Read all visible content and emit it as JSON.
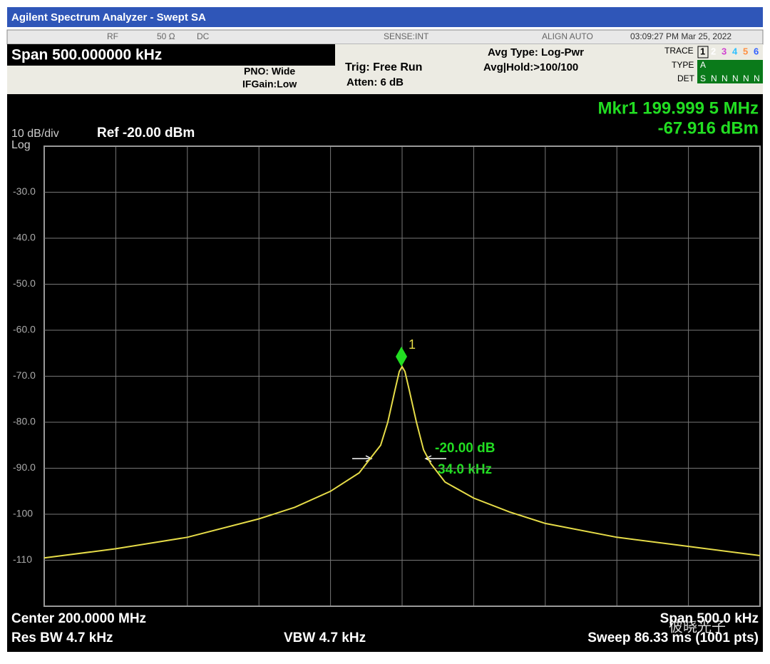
{
  "window_title": "Agilent Spectrum Analyzer - Swept SA",
  "status": {
    "rf": "RF",
    "impedance": "50 Ω",
    "coupling": "DC",
    "sense": "SENSE:INT",
    "align": "ALIGN AUTO",
    "datetime": "03:09:27 PM Mar 25, 2022"
  },
  "settings": {
    "span": "Span 500.000000 kHz",
    "pno": "PNO: Wide",
    "ifgain": "IFGain:Low",
    "trig": "Trig: Free Run",
    "atten": "Atten: 6 dB",
    "avg_type": "Avg Type: Log-Pwr",
    "avg_hold": "Avg|Hold:>100/100",
    "trace_label": "TRACE",
    "traces": [
      "1",
      "2",
      "3",
      "4",
      "5",
      "6"
    ],
    "type_label": "TYPE",
    "type": "A",
    "det_label": "DET",
    "det": [
      "S",
      "N",
      "N",
      "N",
      "N",
      "N"
    ]
  },
  "chart_data": {
    "type": "line",
    "scale_label": "10 dB/div",
    "log_label": "Log",
    "ref_label": "Ref -20.00 dBm",
    "xlim": [
      199.75,
      200.25
    ],
    "ylim": [
      -120,
      -20
    ],
    "yticks": [
      {
        "value": -30,
        "label": "-30.0"
      },
      {
        "value": -40,
        "label": "-40.0"
      },
      {
        "value": -50,
        "label": "-50.0"
      },
      {
        "value": -60,
        "label": "-60.0"
      },
      {
        "value": -70,
        "label": "-70.0"
      },
      {
        "value": -80,
        "label": "-80.0"
      },
      {
        "value": -90,
        "label": "-90.0"
      },
      -100,
      -110
    ],
    "grid": true,
    "series": [
      {
        "name": "Trace 1",
        "color": "#e6dc48",
        "x": [
          199.75,
          199.8,
          199.85,
          199.9,
          199.925,
          199.95,
          199.97,
          199.98,
          199.985,
          199.99,
          199.995,
          199.998,
          200.0,
          200.002,
          200.005,
          200.01,
          200.015,
          200.02,
          200.03,
          200.05,
          200.075,
          200.1,
          200.15,
          200.2,
          200.25
        ],
        "values": [
          -109.5,
          -107.5,
          -105,
          -101,
          -98.5,
          -95,
          -91,
          -87,
          -85,
          -80,
          -73,
          -69,
          -67.9,
          -69,
          -73,
          -80,
          -86,
          -89,
          -93,
          -96.5,
          -99.5,
          -102,
          -105,
          -107,
          -109
        ]
      }
    ],
    "marker": {
      "name": "1",
      "color": "#22dd22",
      "x": 199.9995,
      "y": -67.916,
      "readout_x": "Mkr1 199.999 5 MHz",
      "readout_y": "-67.916 dBm"
    },
    "bandwidth": {
      "level_label": "-20.00 dB",
      "width_label": "34.0 kHz"
    }
  },
  "footer": {
    "center": "Center 200.0000 MHz",
    "rbw": "Res BW 4.7 kHz",
    "vbw": "VBW 4.7 kHz",
    "span": "Span 500.0 kHz",
    "sweep": "Sweep  86.33 ms (1001 pts)"
  },
  "watermark": "彼晓光子"
}
